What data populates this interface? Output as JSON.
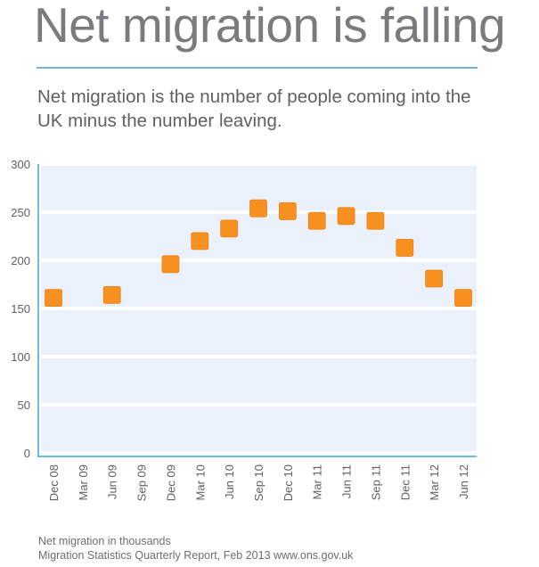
{
  "header": {
    "title": "Net migration is falling",
    "subtitle": "Net migration is the number of people coming into the UK minus the number leaving."
  },
  "footer": {
    "units_note": "Net migration in thousands",
    "source": "Migration Statistics Quarterly Report, Feb 2013 www.ons.gov.uk"
  },
  "colors": {
    "title": "#7a7b7e",
    "divider": "#72b4cc",
    "plot_band": "#eaf1fa",
    "axis": "#3aa7d8",
    "marker": "#f7901e",
    "marker_edge": "#e8841a"
  },
  "chart_data": {
    "type": "scatter",
    "title": "Net migration is falling",
    "xlabel": "",
    "ylabel": "Net migration in thousands",
    "ylim": [
      0,
      300
    ],
    "yticks": [
      0,
      50,
      100,
      150,
      200,
      250,
      300
    ],
    "grid": true,
    "legend": "none",
    "marker": "square",
    "categories": [
      "Dec 08",
      "Mar 09",
      "Jun 09",
      "Sep 09",
      "Dec 09",
      "Mar 10",
      "Jun 10",
      "Sep 10",
      "Dec 10",
      "Mar 11",
      "Jun 11",
      "Sep 11",
      "Dec 11",
      "Mar 12",
      "Jun 12"
    ],
    "series": [
      {
        "name": "Net migration",
        "values": [
          161,
          null,
          164,
          null,
          196,
          220,
          233,
          254,
          251,
          241,
          246,
          241,
          213,
          181,
          161
        ]
      }
    ]
  }
}
